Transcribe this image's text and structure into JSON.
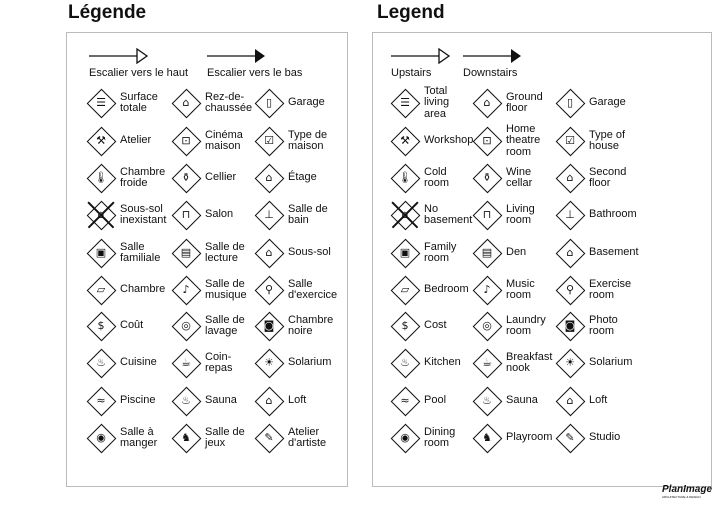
{
  "left": {
    "title": "Légende",
    "stairs_up": "Escalier vers le haut",
    "stairs_down": "Escalier vers le bas",
    "items": [
      {
        "label": "Surface\ntotale",
        "icon": "total-area-icon"
      },
      {
        "label": "Rez-de-\nchaussée",
        "icon": "ground-floor-icon"
      },
      {
        "label": "Garage",
        "icon": "garage-icon"
      },
      {
        "label": "Atelier",
        "icon": "hammer-icon"
      },
      {
        "label": "Cinéma\nmaison",
        "icon": "home-theatre-icon"
      },
      {
        "label": "Type de\nmaison",
        "icon": "checkbox-house-icon"
      },
      {
        "label": "Chambre\nfroide",
        "icon": "thermometer-icon"
      },
      {
        "label": "Cellier",
        "icon": "wine-bottle-icon"
      },
      {
        "label": "Étage",
        "icon": "second-floor-icon"
      },
      {
        "label": "Sous-sol\ninexistant",
        "icon": "no-basement-icon"
      },
      {
        "label": "Salon",
        "icon": "sofa-icon"
      },
      {
        "label": "Salle de\nbain",
        "icon": "toilet-icon"
      },
      {
        "label": "Salle\nfamiliale",
        "icon": "tv-icon"
      },
      {
        "label": "Salle de\nlecture",
        "icon": "book-icon"
      },
      {
        "label": "Sous-sol",
        "icon": "basement-icon"
      },
      {
        "label": "Chambre",
        "icon": "bed-icon"
      },
      {
        "label": "Salle de\nmusique",
        "icon": "music-note-icon"
      },
      {
        "label": "Salle\nd'exercice",
        "icon": "dumbbell-icon"
      },
      {
        "label": "Coût",
        "icon": "dollar-icon"
      },
      {
        "label": "Salle de\nlavage",
        "icon": "laundry-icon"
      },
      {
        "label": "Chambre\nnoire",
        "icon": "camera-icon"
      },
      {
        "label": "Cuisine",
        "icon": "pot-icon"
      },
      {
        "label": "Coin-\nrepas",
        "icon": "breakfast-nook-icon"
      },
      {
        "label": "Solarium",
        "icon": "sun-icon"
      },
      {
        "label": "Piscine",
        "icon": "pool-icon"
      },
      {
        "label": "Sauna",
        "icon": "sauna-icon"
      },
      {
        "label": "Loft",
        "icon": "loft-icon"
      },
      {
        "label": "Salle à\nmanger",
        "icon": "plate-icon"
      },
      {
        "label": "Salle de\njeux",
        "icon": "game-icon"
      },
      {
        "label": "Atelier\nd'artiste",
        "icon": "palette-icon"
      }
    ]
  },
  "right": {
    "title": "Legend",
    "stairs_up": "Upstairs",
    "stairs_down": "Downstairs",
    "items": [
      {
        "label": "Total\nliving\narea",
        "icon": "total-area-icon"
      },
      {
        "label": "Ground\nfloor",
        "icon": "ground-floor-icon"
      },
      {
        "label": "Garage",
        "icon": "garage-icon"
      },
      {
        "label": "Workshop",
        "icon": "hammer-icon"
      },
      {
        "label": "Home\ntheatre\nroom",
        "icon": "home-theatre-icon"
      },
      {
        "label": "Type of\nhouse",
        "icon": "checkbox-house-icon"
      },
      {
        "label": "Cold\nroom",
        "icon": "thermometer-icon"
      },
      {
        "label": "Wine\ncellar",
        "icon": "wine-bottle-icon"
      },
      {
        "label": "Second\nfloor",
        "icon": "second-floor-icon"
      },
      {
        "label": "No\nbasement",
        "icon": "no-basement-icon"
      },
      {
        "label": "Living\nroom",
        "icon": "sofa-icon"
      },
      {
        "label": "Bathroom",
        "icon": "toilet-icon"
      },
      {
        "label": "Family\nroom",
        "icon": "tv-icon"
      },
      {
        "label": "Den",
        "icon": "book-icon"
      },
      {
        "label": "Basement",
        "icon": "basement-icon"
      },
      {
        "label": "Bedroom",
        "icon": "bed-icon"
      },
      {
        "label": "Music\nroom",
        "icon": "music-note-icon"
      },
      {
        "label": "Exercise\nroom",
        "icon": "dumbbell-icon"
      },
      {
        "label": "Cost",
        "icon": "dollar-icon"
      },
      {
        "label": "Laundry\nroom",
        "icon": "laundry-icon"
      },
      {
        "label": "Photo\nroom",
        "icon": "camera-icon"
      },
      {
        "label": "Kitchen",
        "icon": "pot-icon"
      },
      {
        "label": "Breakfast\nnook",
        "icon": "breakfast-nook-icon"
      },
      {
        "label": "Solarium",
        "icon": "sun-icon"
      },
      {
        "label": "Pool",
        "icon": "pool-icon"
      },
      {
        "label": "Sauna",
        "icon": "sauna-icon"
      },
      {
        "label": "Loft",
        "icon": "loft-icon"
      },
      {
        "label": "Dining\nroom",
        "icon": "plate-icon"
      },
      {
        "label": "Playroom",
        "icon": "game-icon"
      },
      {
        "label": "Studio",
        "icon": "palette-icon"
      }
    ]
  },
  "logo": {
    "name": "PlanImage",
    "subtitle": "ARCHITECTURE & DESIGN"
  }
}
